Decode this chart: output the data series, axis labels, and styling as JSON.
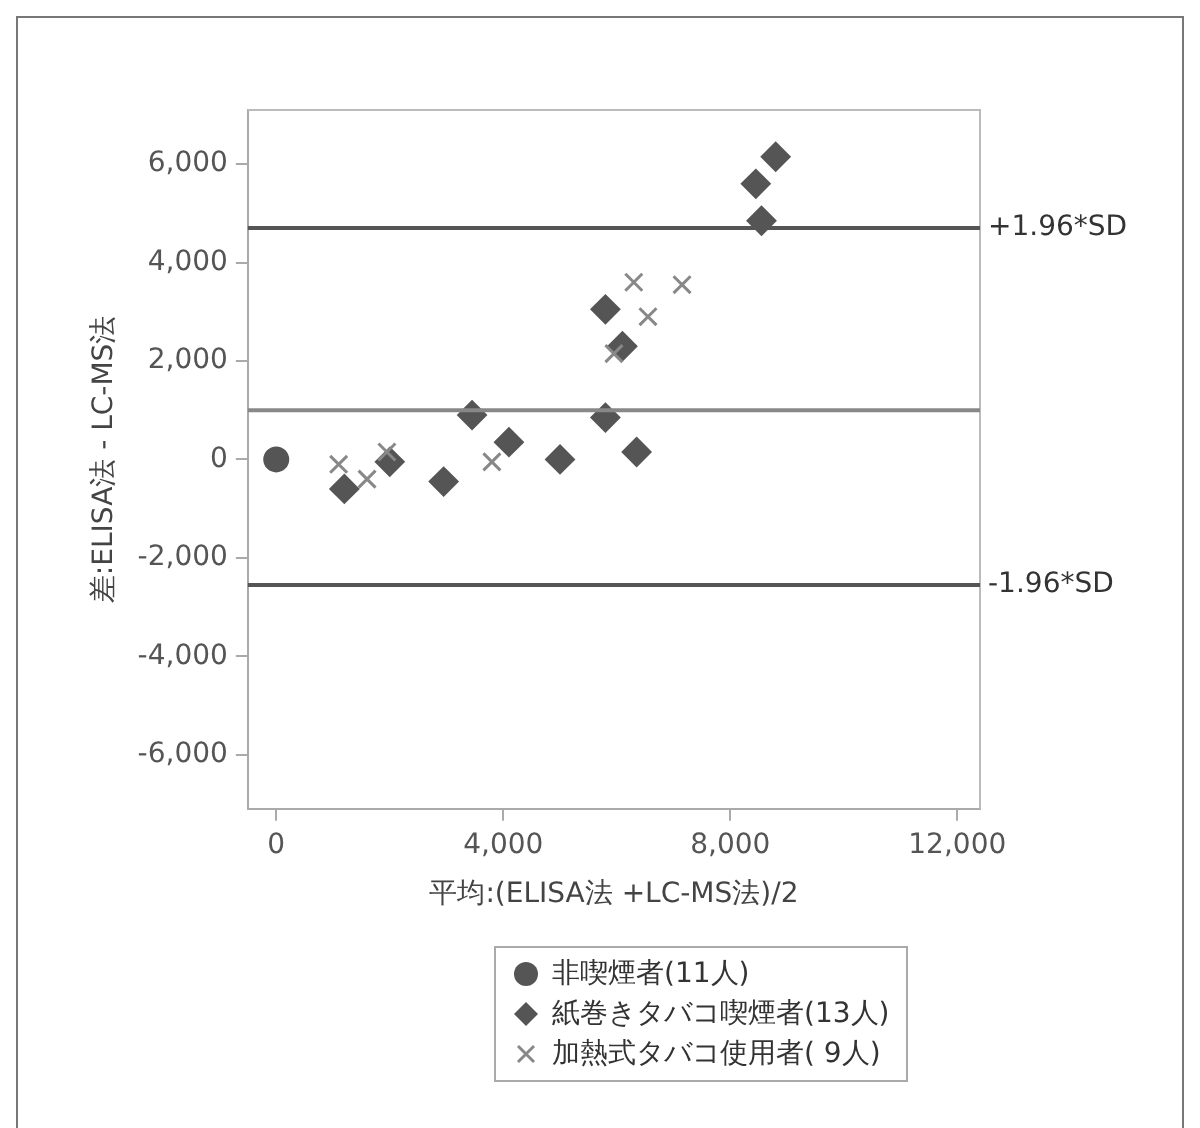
{
  "chart_data": {
    "type": "scatter",
    "xlabel": "平均:(ELISA法 +LC-MS法)/2",
    "ylabel": "差:ELISA法 - LC-MS法",
    "xlim": [
      -500,
      12400
    ],
    "xticks": [
      0,
      {
        "value": 4000,
        "label": "4,000"
      },
      {
        "value": 8000,
        "label": "8,000"
      },
      {
        "value": 12000,
        "label": "12,000"
      }
    ],
    "ylim": [
      -7100,
      7100
    ],
    "yticks": [
      {
        "value": -6000,
        "label": "-6,000"
      },
      {
        "value": -4000,
        "label": "-4,000"
      },
      {
        "value": -2000,
        "label": "-2,000"
      },
      0,
      {
        "value": 2000,
        "label": "2,000"
      },
      {
        "value": 4000,
        "label": "4,000"
      },
      {
        "value": 6000,
        "label": "6,000"
      }
    ],
    "grid": false,
    "legend": "bottom",
    "series": [
      {
        "name": "非喫煙者(11人)",
        "color": "#555555",
        "marker": "circle",
        "x": [
          0
        ],
        "values": [
          0
        ]
      },
      {
        "name": "紙巻きタバコ喫煙者(13人)",
        "color": "#555555",
        "marker": "diamond",
        "x": [
          1200,
          2000,
          2950,
          3450,
          4100,
          5000,
          5800,
          5800,
          6100,
          6350,
          8450,
          8550,
          8800
        ],
        "values": [
          -600,
          -50,
          -450,
          900,
          350,
          0,
          850,
          3050,
          2300,
          150,
          5600,
          4850,
          6150
        ]
      },
      {
        "name": "加熱式タバコ使用者( 9人)",
        "color": "#888888",
        "marker": "cross",
        "x": [
          1100,
          1600,
          1950,
          3800,
          5950,
          6300,
          6550,
          7150
        ],
        "values": [
          -100,
          -400,
          150,
          -50,
          2150,
          3600,
          2900,
          3550
        ]
      }
    ],
    "ref_lines": [
      {
        "axis": "y",
        "value": 4700,
        "label": "+1.96*SD",
        "color": "#555555"
      },
      {
        "axis": "y",
        "value": 1000,
        "color": "#888888"
      },
      {
        "axis": "y",
        "value": -2550,
        "label": "-1.96*SD",
        "color": "#555555"
      }
    ]
  }
}
